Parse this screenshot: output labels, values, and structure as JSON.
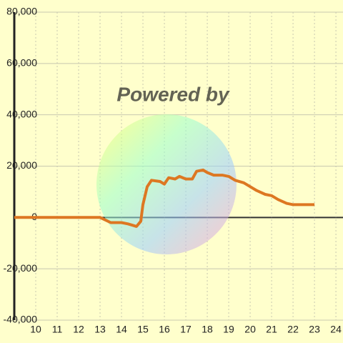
{
  "chart_data": {
    "type": "line",
    "watermark": "Powered by",
    "x": [
      9,
      10,
      11,
      12,
      13,
      13.5,
      14,
      14.3,
      14.5,
      14.7,
      14.9,
      15,
      15.2,
      15.4,
      15.8,
      16,
      16.2,
      16.5,
      16.7,
      17,
      17.3,
      17.5,
      17.8,
      18,
      18.3,
      18.7,
      19,
      19.3,
      19.7,
      20,
      20.3,
      20.7,
      21,
      21.3,
      21.7,
      22,
      23
    ],
    "values": [
      0,
      0,
      0,
      0,
      0,
      -2000,
      -2000,
      -2500,
      -3000,
      -3500,
      -1500,
      5000,
      12000,
      14500,
      14000,
      13000,
      15500,
      15000,
      16000,
      15000,
      15000,
      18000,
      18500,
      17500,
      16500,
      16500,
      16000,
      14500,
      13500,
      12000,
      10500,
      9000,
      8500,
      7000,
      5500,
      5000,
      5000
    ],
    "color": "#dd7722",
    "xlim": [
      9,
      24.33
    ],
    "xticks": [
      10,
      11,
      12,
      13,
      14,
      15,
      16,
      17,
      18,
      19,
      20,
      21,
      22,
      23,
      24
    ],
    "ylim": [
      -40000,
      80000
    ],
    "yticks": [
      {
        "value": -40000,
        "label": "-40,000"
      },
      {
        "value": -20000,
        "label": "-20,000"
      },
      0,
      {
        "value": 20000,
        "label": "20,000"
      },
      {
        "value": 40000,
        "label": "40,000"
      },
      {
        "value": 60000,
        "label": "60,000"
      },
      {
        "value": 80000,
        "label": "80,000"
      }
    ],
    "grid": true
  }
}
